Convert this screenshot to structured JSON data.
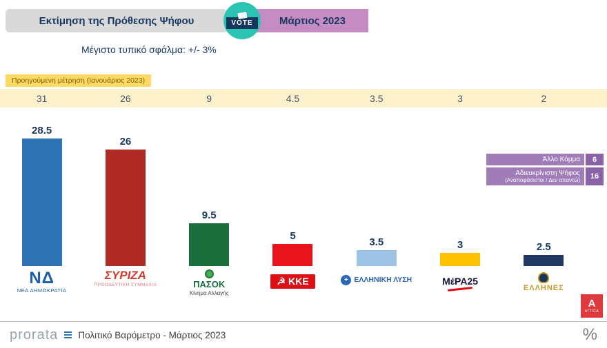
{
  "header": {
    "title": "Εκτίμηση της Πρόθεσης Ψήφου",
    "vote_label": "VOTE",
    "period": "Μάρτιος 2023",
    "error_note": "Μέγιστο τυπικό σφάλμα: +/- 3%"
  },
  "previous": {
    "label": "Προηγούμενη μέτρηση (Ιανουάριος 2023)",
    "values": [
      "31",
      "26",
      "9",
      "4.5",
      "3.5",
      "3",
      "2"
    ]
  },
  "chart_data": {
    "type": "bar",
    "title": "Εκτίμηση της Πρόθεσης Ψήφου - Μάρτιος 2023",
    "categories": [
      "ΝΕΑ ΔΗΜΟΚΡΑΤΙΑ",
      "ΣΥΡΙΖΑ - ΠΡΟΟΔΕΥΤΙΚΗ ΣΥΜΜΑΧΙΑ",
      "ΠΑΣΟΚ - Κίνημα Αλλαγής",
      "ΚΚΕ",
      "ΕΛΛΗΝΙΚΗ ΛΥΣΗ",
      "ΜέΡΑ25",
      "ΕΛΛΗΝΕΣ"
    ],
    "values": [
      28.5,
      26,
      9.5,
      5,
      3.5,
      3,
      2.5
    ],
    "previous_values_jan_2023": [
      31,
      26,
      9,
      4.5,
      3.5,
      3,
      2
    ],
    "other_party": 6,
    "undecided": 16,
    "colors": [
      "#2e74b5",
      "#b02a24",
      "#1a6e3c",
      "#e8131b",
      "#9dc3e6",
      "#ffc000",
      "#1f3864"
    ],
    "ylim": [
      0,
      31
    ],
    "grid": false,
    "max_typical_error_pct": 3
  },
  "parties": [
    {
      "value": "28.5",
      "logo_main": "ΝΔ",
      "logo_sub": "ΝΕΑ ΔΗΜΟΚΡΑΤΙΑ",
      "logo_color": "#1b5eab",
      "logo_sub_color": "#1b5eab"
    },
    {
      "value": "26",
      "logo_main": "ΣΥΡΙΖΑ",
      "logo_sub": "ΠΡΟΟΔΕΥΤΙΚΗ ΣΥΜΜΑΧΙΑ",
      "logo_color": "#d03a2e",
      "logo_sub_color": "#e07a80"
    },
    {
      "value": "9.5",
      "logo_main": "ΠΑΣΟΚ",
      "logo_sub": "Κίνημα Αλλαγής",
      "logo_color": "#1a6e3c",
      "logo_sub_color": "#444444"
    },
    {
      "value": "5",
      "logo_main": "ΚΚΕ",
      "logo_color": "#ffffff",
      "logo_bg": "#dd1016"
    },
    {
      "value": "3.5",
      "logo_main": "ΕΛΛΗΝΙΚΗ ΛΥΣΗ",
      "logo_color": "#2b66b8"
    },
    {
      "value": "3",
      "logo_main": "ΜέΡΑ25",
      "logo_color": "#14143c"
    },
    {
      "value": "2.5",
      "logo_main": "ΕΛΛΗΝΕΣ",
      "logo_color": "#c49a2a"
    }
  ],
  "side_panel": {
    "other_party": {
      "label": "Άλλο Κόμμα",
      "value": "6"
    },
    "undecided": {
      "label": "Αδιευκρίνιστη Ψήφος",
      "sublabel": "(Αναποφάσιστοι / Δεν απαντώ)",
      "value": "16"
    }
  },
  "attica_logo": {
    "letter": "A",
    "text": "ATTICA"
  },
  "footer": {
    "brand": "prorata",
    "text": "Πολιτικό Βαρόμετρο - Μάρτιος 2023",
    "percent_symbol": "%"
  },
  "colors": {
    "title_bar_bg": "#d9d9d9",
    "heading_text": "#17375e",
    "period_bar_bg": "#c58cc3",
    "vote_badge_bg": "#2bc4b3",
    "prev_label_bg": "#ffd966",
    "prev_label_text": "#7f6000",
    "prev_strip_bg": "#fdf2cc",
    "prev_value_text": "#44546a",
    "value_label_text": "#17375e",
    "side_label_bg": "#a07cb8",
    "side_value_bg": "#8a62a8",
    "attica_bg": "#e03a3e",
    "footer_text": "#3f3f3f",
    "brand_text": "#9aa3ad"
  }
}
